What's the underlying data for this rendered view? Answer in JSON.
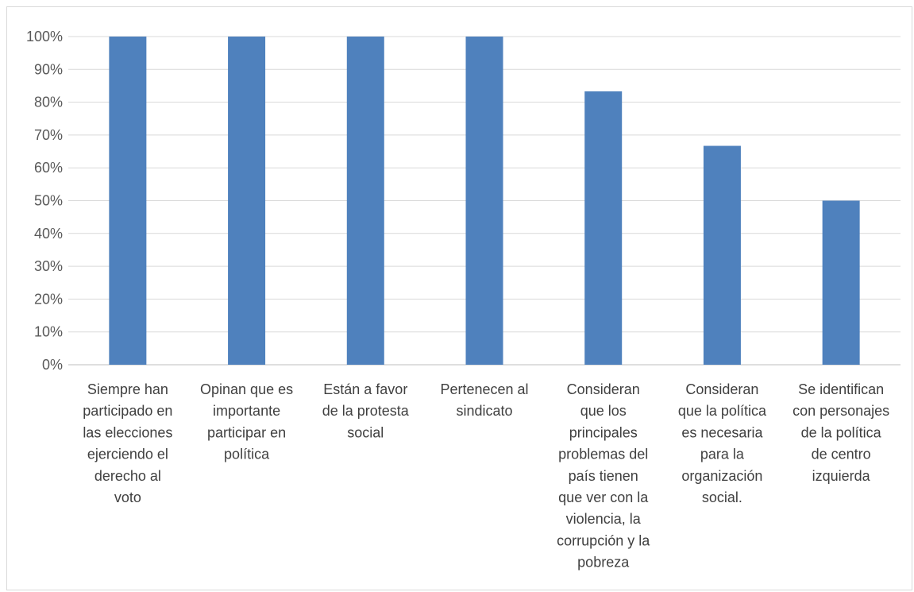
{
  "chart_data": {
    "type": "bar",
    "categories": [
      [
        "Siempre han",
        "participado en",
        "las elecciones",
        "ejerciendo el",
        "derecho al",
        "voto"
      ],
      [
        "Opinan que es",
        "importante",
        "participar en",
        "política"
      ],
      [
        "Están a favor",
        "de la protesta",
        "social"
      ],
      [
        "Pertenecen al",
        "sindicato"
      ],
      [
        "Consideran",
        "que los",
        "principales",
        "problemas del",
        "país tienen",
        "que ver con la",
        "violencia, la",
        "corrupción y la",
        "pobreza"
      ],
      [
        "Consideran",
        "que la política",
        "es necesaria",
        "para la",
        "organización",
        "social."
      ],
      [
        "Se identifican",
        "con personajes",
        "de la política",
        "de centro",
        "izquierda"
      ]
    ],
    "values": [
      100,
      100,
      100,
      100,
      83.3,
      66.7,
      50
    ],
    "ylim": [
      0,
      100
    ],
    "yticks": [
      "0%",
      "10%",
      "20%",
      "30%",
      "40%",
      "50%",
      "60%",
      "70%",
      "80%",
      "90%",
      "100%"
    ],
    "grid": true,
    "legend": "none",
    "colors": {
      "bar": "#4f81bd",
      "grid": "#d9d9d9",
      "axis": "#bfbfbf"
    }
  }
}
